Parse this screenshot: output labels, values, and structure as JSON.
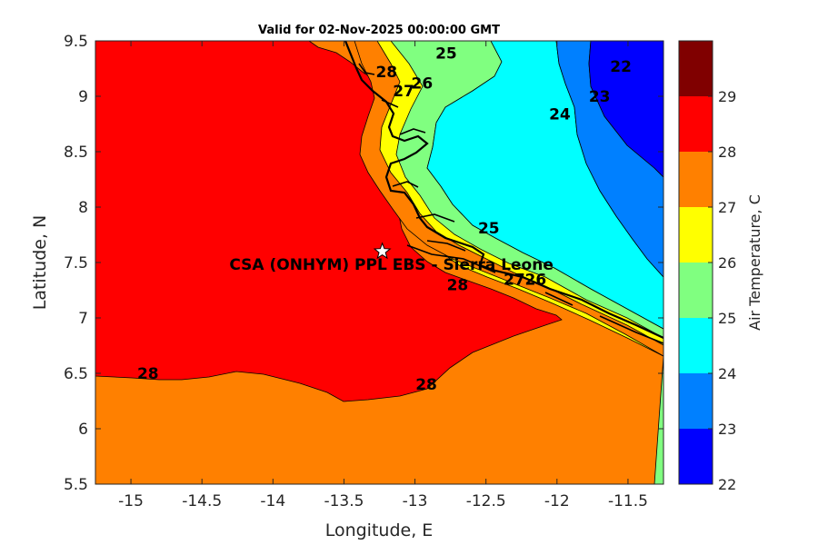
{
  "title": "Valid for 02-Nov-2025 00:00:00 GMT",
  "axes": {
    "xlabel": "Longitude, E",
    "ylabel": "Latitude, N",
    "xlim": [
      -15.25,
      -11.25
    ],
    "ylim": [
      5.5,
      9.5
    ],
    "xticks": [
      "-15",
      "-14.5",
      "-14",
      "-13.5",
      "-13",
      "-12.5",
      "-12",
      "-11.5"
    ],
    "xtick_values": [
      -15,
      -14.5,
      -14,
      -13.5,
      -13,
      -12.5,
      -12,
      -11.5
    ],
    "yticks": [
      "5.5",
      "6",
      "6.5",
      "7",
      "7.5",
      "8",
      "8.5",
      "9",
      "9.5"
    ],
    "ytick_values": [
      5.5,
      6,
      6.5,
      7,
      7.5,
      8,
      8.5,
      9,
      9.5
    ]
  },
  "colorbar": {
    "label": "Air Temperature, C",
    "ticks": [
      "22",
      "23",
      "24",
      "25",
      "26",
      "27",
      "28",
      "29"
    ],
    "levels": [
      22,
      23,
      24,
      25,
      26,
      27,
      28,
      29
    ],
    "colors": [
      "#0000ff",
      "#0080ff",
      "#00ffff",
      "#80ff80",
      "#ffff00",
      "#ff8000",
      "#ff0000",
      "#800000"
    ]
  },
  "site": {
    "label": "CSA (ONHYM) PPL EBS  - Sierra Leone",
    "lon": -13.23,
    "lat": 7.6
  },
  "contour_labels": [
    {
      "text": "22",
      "lon": -11.55,
      "lat": 9.27
    },
    {
      "text": "23",
      "lon": -11.7,
      "lat": 9.0
    },
    {
      "text": "24",
      "lon": -11.98,
      "lat": 8.84
    },
    {
      "text": "25",
      "lon": -12.78,
      "lat": 9.39
    },
    {
      "text": "25",
      "lon": -12.48,
      "lat": 7.81
    },
    {
      "text": "26",
      "lon": -12.95,
      "lat": 9.12
    },
    {
      "text": "26",
      "lon": -12.15,
      "lat": 7.35
    },
    {
      "text": "27",
      "lon": -13.08,
      "lat": 9.05
    },
    {
      "text": "27",
      "lon": -12.3,
      "lat": 7.35
    },
    {
      "text": "28",
      "lon": -13.2,
      "lat": 9.22
    },
    {
      "text": "28",
      "lon": -12.7,
      "lat": 7.3
    },
    {
      "text": "28",
      "lon": -14.88,
      "lat": 6.5
    },
    {
      "text": "28",
      "lon": -12.92,
      "lat": 6.4
    }
  ]
}
